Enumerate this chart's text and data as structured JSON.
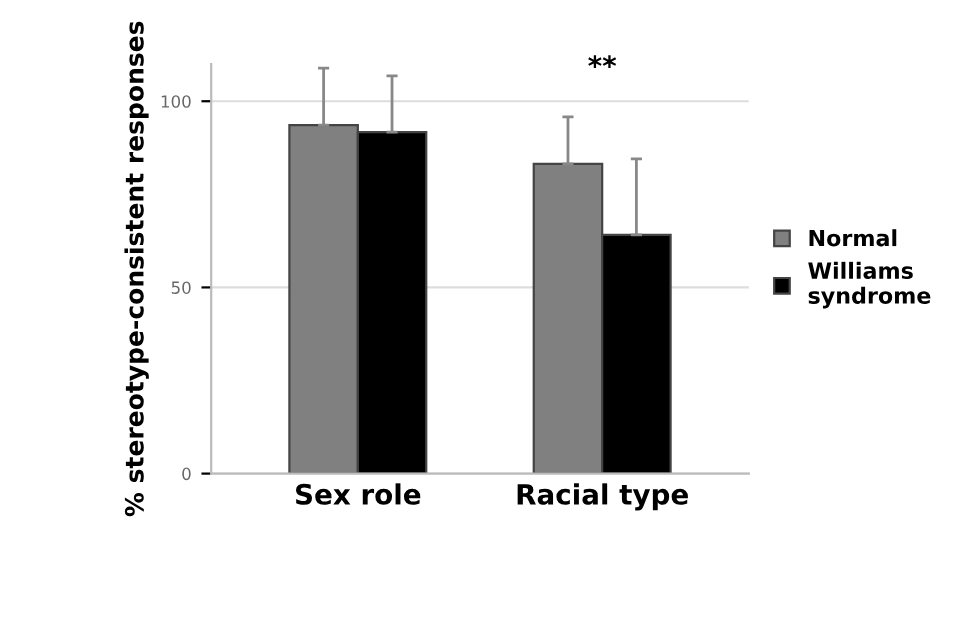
{
  "chart_data": {
    "type": "bar",
    "ylabel": "% stereotype-consistent responses",
    "categories": [
      "Sex role",
      "Racial type"
    ],
    "series": [
      {
        "name": "Normal",
        "color": "#808080",
        "values": [
          93.6,
          83.2
        ],
        "errors": [
          [
            93.6,
            108.9
          ],
          [
            83.2,
            95.8
          ]
        ]
      },
      {
        "name": "Williams syndrome",
        "color": "#000000",
        "values": [
          91.7,
          64.1
        ],
        "errors": [
          [
            91.7,
            106.8
          ],
          [
            64.1,
            84.5
          ]
        ]
      }
    ],
    "ylim": [
      0,
      110
    ],
    "yticks": [
      0,
      50,
      100
    ],
    "grid": "y",
    "legend": "right",
    "annotations": [
      "**"
    ]
  }
}
